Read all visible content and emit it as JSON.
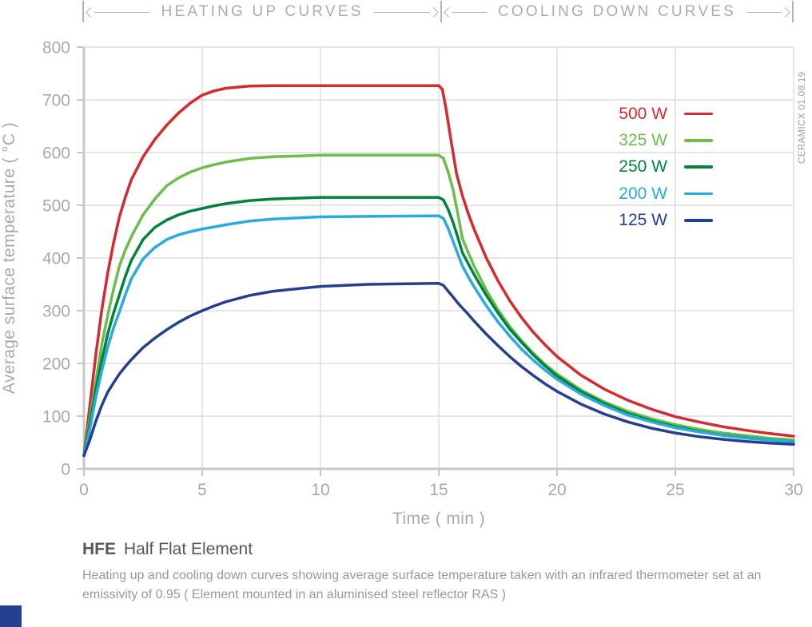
{
  "header": {
    "left_title": "HEATING UP CURVES",
    "right_title": "COOLING DOWN CURVES"
  },
  "watermark": "CERAMICX 01.08.19",
  "footer": {
    "code": "HFE",
    "name": "Half Flat Element",
    "description": "Heating up and cooling down curves showing average surface temperature taken with an infrared thermometer set at an emissivity of 0.95  ( Element mounted in an aluminised steel reflector RAS )"
  },
  "colors": {
    "grid": "#dcdddf",
    "axis": "#c6c8ca",
    "tick_text": "#a6aaae",
    "header_gray": "#a9adb0",
    "accent_square": "#24408e"
  },
  "chart_data": {
    "type": "line",
    "xlabel": "Time ( min )",
    "ylabel": "Average surface temperature ( °C )",
    "xlim": [
      0,
      30
    ],
    "ylim": [
      0,
      800
    ],
    "x_ticks": [
      0,
      5,
      10,
      15,
      20,
      25,
      30
    ],
    "y_ticks": [
      0,
      100,
      200,
      300,
      400,
      500,
      600,
      700,
      800
    ],
    "grid": true,
    "legend_position": "upper right",
    "heating_phase_minutes": [
      0,
      15
    ],
    "cooling_phase_minutes": [
      15,
      30
    ],
    "series": [
      {
        "name": "500 W",
        "color": "#d42a30",
        "plateau_c": 727,
        "points": [
          [
            0,
            25
          ],
          [
            0.25,
            120
          ],
          [
            0.5,
            215
          ],
          [
            0.75,
            300
          ],
          [
            1,
            370
          ],
          [
            1.25,
            428
          ],
          [
            1.5,
            478
          ],
          [
            1.75,
            515
          ],
          [
            2,
            548
          ],
          [
            2.5,
            592
          ],
          [
            3,
            625
          ],
          [
            3.5,
            652
          ],
          [
            4,
            675
          ],
          [
            4.5,
            694
          ],
          [
            5,
            709
          ],
          [
            5.5,
            717
          ],
          [
            6,
            722
          ],
          [
            7,
            726
          ],
          [
            8,
            727
          ],
          [
            10,
            727
          ],
          [
            12,
            727
          ],
          [
            15,
            727
          ],
          [
            15.15,
            720
          ],
          [
            15.3,
            685
          ],
          [
            15.5,
            628
          ],
          [
            15.75,
            560
          ],
          [
            16,
            518
          ],
          [
            16.25,
            484
          ],
          [
            16.5,
            454
          ],
          [
            17,
            401
          ],
          [
            17.5,
            357
          ],
          [
            18,
            319
          ],
          [
            18.5,
            287
          ],
          [
            19,
            259
          ],
          [
            19.5,
            235
          ],
          [
            20,
            213
          ],
          [
            21,
            178
          ],
          [
            22,
            151
          ],
          [
            23,
            130
          ],
          [
            24,
            113
          ],
          [
            25,
            99
          ],
          [
            26,
            89
          ],
          [
            27,
            80
          ],
          [
            28,
            73
          ],
          [
            29,
            67
          ],
          [
            30,
            62
          ]
        ]
      },
      {
        "name": "325 W",
        "color": "#6bbe4a",
        "plateau_c": 595,
        "points": [
          [
            0,
            25
          ],
          [
            0.25,
            95
          ],
          [
            0.5,
            165
          ],
          [
            0.75,
            235
          ],
          [
            1,
            290
          ],
          [
            1.25,
            340
          ],
          [
            1.5,
            385
          ],
          [
            1.75,
            415
          ],
          [
            2,
            440
          ],
          [
            2.5,
            482
          ],
          [
            3,
            512
          ],
          [
            3.5,
            537
          ],
          [
            4,
            552
          ],
          [
            4.5,
            563
          ],
          [
            5,
            571
          ],
          [
            5.5,
            577
          ],
          [
            6,
            582
          ],
          [
            7,
            589
          ],
          [
            8,
            592
          ],
          [
            10,
            595
          ],
          [
            12,
            595
          ],
          [
            15,
            595
          ],
          [
            15.2,
            589
          ],
          [
            15.4,
            563
          ],
          [
            15.6,
            530
          ],
          [
            15.8,
            485
          ],
          [
            16,
            437
          ],
          [
            16.25,
            410
          ],
          [
            16.5,
            384
          ],
          [
            17,
            340
          ],
          [
            17.5,
            302
          ],
          [
            18,
            270
          ],
          [
            18.5,
            243
          ],
          [
            19,
            219
          ],
          [
            19.5,
            198
          ],
          [
            20,
            180
          ],
          [
            21,
            150
          ],
          [
            22,
            127
          ],
          [
            23,
            109
          ],
          [
            24,
            95
          ],
          [
            25,
            84
          ],
          [
            26,
            75
          ],
          [
            27,
            68
          ],
          [
            28,
            63
          ],
          [
            29,
            58
          ],
          [
            30,
            55
          ]
        ]
      },
      {
        "name": "250 W",
        "color": "#00843d",
        "plateau_c": 515,
        "points": [
          [
            0,
            25
          ],
          [
            0.25,
            85
          ],
          [
            0.5,
            150
          ],
          [
            0.75,
            205
          ],
          [
            1,
            255
          ],
          [
            1.25,
            295
          ],
          [
            1.5,
            330
          ],
          [
            1.75,
            365
          ],
          [
            2,
            395
          ],
          [
            2.5,
            435
          ],
          [
            3,
            458
          ],
          [
            3.5,
            472
          ],
          [
            4,
            482
          ],
          [
            4.5,
            489
          ],
          [
            5,
            494
          ],
          [
            5.5,
            499
          ],
          [
            6,
            503
          ],
          [
            7,
            509
          ],
          [
            8,
            512
          ],
          [
            10,
            515
          ],
          [
            12,
            515
          ],
          [
            15,
            515
          ],
          [
            15.2,
            510
          ],
          [
            15.4,
            492
          ],
          [
            15.6,
            468
          ],
          [
            15.8,
            440
          ],
          [
            16,
            410
          ],
          [
            16.25,
            389
          ],
          [
            16.5,
            368
          ],
          [
            17,
            330
          ],
          [
            17.5,
            296
          ],
          [
            18,
            265
          ],
          [
            18.5,
            240
          ],
          [
            19,
            216
          ],
          [
            19.5,
            195
          ],
          [
            20,
            176
          ],
          [
            21,
            147
          ],
          [
            22,
            124
          ],
          [
            23,
            105
          ],
          [
            24,
            91
          ],
          [
            25,
            80
          ],
          [
            26,
            71
          ],
          [
            27,
            64
          ],
          [
            28,
            59
          ],
          [
            29,
            55
          ],
          [
            30,
            51.5
          ]
        ]
      },
      {
        "name": "200 W",
        "color": "#29abe2",
        "plateau_c": 480,
        "points": [
          [
            0,
            25
          ],
          [
            0.25,
            75
          ],
          [
            0.5,
            135
          ],
          [
            0.75,
            185
          ],
          [
            1,
            230
          ],
          [
            1.25,
            267
          ],
          [
            1.5,
            298
          ],
          [
            1.75,
            330
          ],
          [
            2,
            360
          ],
          [
            2.5,
            398
          ],
          [
            3,
            420
          ],
          [
            3.5,
            435
          ],
          [
            4,
            444
          ],
          [
            4.5,
            450
          ],
          [
            5,
            455
          ],
          [
            5.5,
            459
          ],
          [
            6,
            463
          ],
          [
            7,
            470
          ],
          [
            8,
            474
          ],
          [
            10,
            478
          ],
          [
            12,
            479
          ],
          [
            15,
            480
          ],
          [
            15.2,
            475
          ],
          [
            15.4,
            456
          ],
          [
            15.6,
            432
          ],
          [
            15.8,
            408
          ],
          [
            16,
            385
          ],
          [
            16.25,
            364
          ],
          [
            16.5,
            345
          ],
          [
            17,
            310
          ],
          [
            17.5,
            279
          ],
          [
            18,
            252
          ],
          [
            18.5,
            227
          ],
          [
            19,
            206
          ],
          [
            19.5,
            187
          ],
          [
            20,
            170
          ],
          [
            21,
            142
          ],
          [
            22,
            120
          ],
          [
            23,
            102
          ],
          [
            24,
            89
          ],
          [
            25,
            78
          ],
          [
            26,
            70
          ],
          [
            27,
            63.5
          ],
          [
            28,
            58
          ],
          [
            29,
            54.5
          ],
          [
            30,
            51
          ]
        ]
      },
      {
        "name": "125 W",
        "color": "#24408e",
        "plateau_c": 352,
        "points": [
          [
            0,
            25
          ],
          [
            0.25,
            55
          ],
          [
            0.5,
            90
          ],
          [
            0.75,
            120
          ],
          [
            1,
            145
          ],
          [
            1.25,
            163
          ],
          [
            1.5,
            180
          ],
          [
            1.75,
            194
          ],
          [
            2,
            207
          ],
          [
            2.5,
            230
          ],
          [
            3,
            248
          ],
          [
            3.5,
            264
          ],
          [
            4,
            278
          ],
          [
            4.5,
            290
          ],
          [
            5,
            300
          ],
          [
            5.5,
            309
          ],
          [
            6,
            317
          ],
          [
            7,
            329
          ],
          [
            8,
            337
          ],
          [
            10,
            346
          ],
          [
            12,
            350
          ],
          [
            15,
            352
          ],
          [
            15.2,
            348
          ],
          [
            15.4,
            337
          ],
          [
            15.6,
            326
          ],
          [
            15.8,
            315
          ],
          [
            16,
            305
          ],
          [
            16.25,
            293
          ],
          [
            16.5,
            280
          ],
          [
            17,
            256
          ],
          [
            17.5,
            234
          ],
          [
            18,
            213
          ],
          [
            18.5,
            194
          ],
          [
            19,
            177
          ],
          [
            19.5,
            161
          ],
          [
            20,
            147
          ],
          [
            21,
            123
          ],
          [
            22,
            104
          ],
          [
            23,
            89
          ],
          [
            24,
            77
          ],
          [
            25,
            68
          ],
          [
            26,
            61
          ],
          [
            27,
            56
          ],
          [
            28,
            52
          ],
          [
            29,
            49
          ],
          [
            30,
            46.5
          ]
        ]
      }
    ]
  }
}
